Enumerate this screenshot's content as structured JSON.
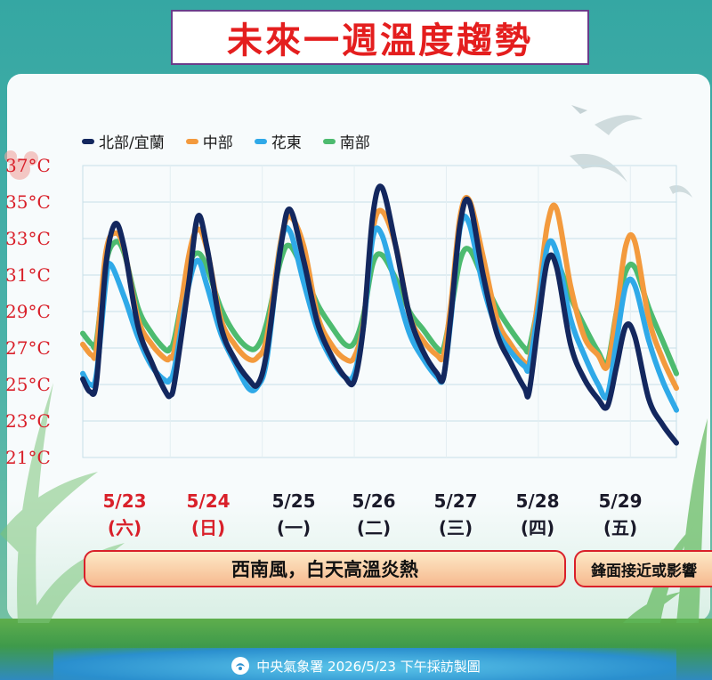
{
  "title": "未來一週溫度趨勢",
  "footer": {
    "text": "中央氣象署 2026/5/23 下午採訪製圖"
  },
  "dates": [
    {
      "date": "5/23",
      "weekday": "(六)",
      "color": "#d9202a"
    },
    {
      "date": "5/24",
      "weekday": "(日)",
      "color": "#d9202a"
    },
    {
      "date": "5/25",
      "weekday": "(一)",
      "color": "#1a1a2a"
    },
    {
      "date": "5/26",
      "weekday": "(二)",
      "color": "#1a1a2a"
    },
    {
      "date": "5/27",
      "weekday": "(三)",
      "color": "#1a1a2a"
    },
    {
      "date": "5/28",
      "weekday": "(四)",
      "color": "#1a1a2a"
    },
    {
      "date": "5/29",
      "weekday": "(五)",
      "color": "#1a1a2a"
    }
  ],
  "banners": {
    "main": "西南風，白天高溫炎熱",
    "side": "鋒面接近或影響"
  },
  "chart_data": {
    "type": "line",
    "title": "未來一週溫度趨勢",
    "xlabel": "",
    "ylabel": "",
    "y_ticks": [
      "37°C",
      "35°C",
      "33°C",
      "31°C",
      "29°C",
      "27°C",
      "25°C",
      "23°C",
      "21°C"
    ],
    "ylim": [
      21,
      37
    ],
    "grid": true,
    "legend_position": "top-left",
    "x_note": "Hourly-ish points across 5/23–5/29; x values are fractional days from 5/23 00:00.",
    "series": [
      {
        "name": "北部/宜蘭",
        "color": "#13275e",
        "points": [
          [
            0.0,
            25.3
          ],
          [
            0.08,
            24.6
          ],
          [
            0.15,
            25.2
          ],
          [
            0.25,
            31.5
          ],
          [
            0.35,
            33.8
          ],
          [
            0.45,
            32.5
          ],
          [
            0.6,
            28.2
          ],
          [
            0.75,
            26.2
          ],
          [
            0.9,
            24.6
          ],
          [
            0.95,
            24.4
          ],
          [
            1.0,
            25.2
          ],
          [
            1.15,
            30.5
          ],
          [
            1.25,
            34.2
          ],
          [
            1.35,
            32.5
          ],
          [
            1.5,
            28.2
          ],
          [
            1.65,
            26.4
          ],
          [
            1.8,
            25.3
          ],
          [
            1.9,
            25.0
          ],
          [
            2.0,
            26.8
          ],
          [
            2.15,
            32.5
          ],
          [
            2.25,
            34.6
          ],
          [
            2.4,
            31.8
          ],
          [
            2.55,
            28.4
          ],
          [
            2.7,
            26.6
          ],
          [
            2.85,
            25.4
          ],
          [
            2.95,
            25.2
          ],
          [
            3.05,
            28.2
          ],
          [
            3.15,
            34.2
          ],
          [
            3.25,
            35.8
          ],
          [
            3.4,
            32.6
          ],
          [
            3.55,
            28.8
          ],
          [
            3.7,
            26.8
          ],
          [
            3.85,
            25.6
          ],
          [
            3.92,
            25.4
          ],
          [
            4.0,
            28.8
          ],
          [
            4.1,
            33.8
          ],
          [
            4.2,
            35.0
          ],
          [
            4.35,
            31.0
          ],
          [
            4.5,
            27.8
          ],
          [
            4.65,
            26.2
          ],
          [
            4.8,
            24.8
          ],
          [
            4.85,
            24.6
          ],
          [
            4.95,
            28.4
          ],
          [
            5.05,
            31.8
          ],
          [
            5.15,
            31.4
          ],
          [
            5.3,
            27.2
          ],
          [
            5.45,
            25.3
          ],
          [
            5.6,
            24.2
          ],
          [
            5.7,
            23.8
          ],
          [
            5.8,
            26.0
          ],
          [
            5.9,
            28.2
          ],
          [
            6.0,
            27.6
          ],
          [
            6.15,
            24.2
          ],
          [
            6.3,
            22.8
          ],
          [
            6.45,
            21.8
          ]
        ]
      },
      {
        "name": "中部",
        "color": "#f39a3d",
        "points": [
          [
            0.0,
            27.2
          ],
          [
            0.1,
            26.6
          ],
          [
            0.15,
            27.0
          ],
          [
            0.25,
            32.2
          ],
          [
            0.35,
            33.3
          ],
          [
            0.45,
            32.4
          ],
          [
            0.6,
            28.6
          ],
          [
            0.75,
            27.2
          ],
          [
            0.9,
            26.4
          ],
          [
            0.95,
            26.5
          ],
          [
            1.0,
            27.0
          ],
          [
            1.15,
            32.0
          ],
          [
            1.25,
            33.5
          ],
          [
            1.35,
            32.4
          ],
          [
            1.5,
            28.6
          ],
          [
            1.65,
            27.2
          ],
          [
            1.8,
            26.4
          ],
          [
            1.9,
            26.5
          ],
          [
            2.0,
            27.6
          ],
          [
            2.15,
            32.8
          ],
          [
            2.25,
            34.2
          ],
          [
            2.4,
            32.6
          ],
          [
            2.55,
            28.8
          ],
          [
            2.7,
            27.2
          ],
          [
            2.85,
            26.4
          ],
          [
            2.95,
            26.5
          ],
          [
            3.05,
            28.4
          ],
          [
            3.15,
            33.4
          ],
          [
            3.25,
            34.5
          ],
          [
            3.4,
            32.6
          ],
          [
            3.55,
            28.8
          ],
          [
            3.7,
            27.4
          ],
          [
            3.85,
            26.6
          ],
          [
            3.92,
            26.6
          ],
          [
            4.0,
            29.4
          ],
          [
            4.1,
            34.2
          ],
          [
            4.2,
            35.1
          ],
          [
            4.35,
            32.0
          ],
          [
            4.5,
            28.6
          ],
          [
            4.65,
            27.2
          ],
          [
            4.8,
            26.2
          ],
          [
            4.85,
            26.2
          ],
          [
            4.95,
            29.8
          ],
          [
            5.05,
            33.8
          ],
          [
            5.15,
            34.6
          ],
          [
            5.3,
            30.4
          ],
          [
            5.45,
            27.6
          ],
          [
            5.6,
            26.6
          ],
          [
            5.7,
            26.0
          ],
          [
            5.8,
            29.0
          ],
          [
            5.9,
            32.6
          ],
          [
            6.0,
            32.8
          ],
          [
            6.15,
            28.6
          ],
          [
            6.3,
            26.4
          ],
          [
            6.45,
            24.8
          ]
        ]
      },
      {
        "name": "花東",
        "color": "#2fa9e8",
        "points": [
          [
            0.0,
            25.6
          ],
          [
            0.08,
            25.0
          ],
          [
            0.15,
            25.6
          ],
          [
            0.25,
            30.6
          ],
          [
            0.3,
            31.6
          ],
          [
            0.45,
            29.8
          ],
          [
            0.6,
            27.6
          ],
          [
            0.75,
            26.0
          ],
          [
            0.9,
            25.2
          ],
          [
            0.95,
            25.3
          ],
          [
            1.0,
            26.0
          ],
          [
            1.15,
            30.4
          ],
          [
            1.25,
            31.8
          ],
          [
            1.35,
            30.4
          ],
          [
            1.5,
            27.8
          ],
          [
            1.65,
            26.2
          ],
          [
            1.8,
            24.8
          ],
          [
            1.9,
            24.9
          ],
          [
            2.0,
            26.4
          ],
          [
            2.15,
            32.6
          ],
          [
            2.25,
            33.4
          ],
          [
            2.4,
            30.6
          ],
          [
            2.55,
            28.0
          ],
          [
            2.7,
            26.4
          ],
          [
            2.85,
            25.4
          ],
          [
            2.95,
            25.6
          ],
          [
            3.05,
            28.2
          ],
          [
            3.15,
            33.0
          ],
          [
            3.25,
            33.2
          ],
          [
            3.4,
            30.4
          ],
          [
            3.55,
            27.8
          ],
          [
            3.7,
            26.4
          ],
          [
            3.85,
            25.4
          ],
          [
            3.92,
            25.4
          ],
          [
            4.0,
            28.6
          ],
          [
            4.1,
            33.6
          ],
          [
            4.2,
            33.8
          ],
          [
            4.35,
            30.4
          ],
          [
            4.5,
            28.0
          ],
          [
            4.65,
            26.8
          ],
          [
            4.8,
            26.0
          ],
          [
            4.85,
            26.0
          ],
          [
            4.95,
            29.2
          ],
          [
            5.05,
            32.6
          ],
          [
            5.15,
            32.2
          ],
          [
            5.3,
            28.6
          ],
          [
            5.45,
            26.6
          ],
          [
            5.6,
            25.0
          ],
          [
            5.7,
            24.4
          ],
          [
            5.8,
            27.4
          ],
          [
            5.9,
            30.4
          ],
          [
            6.0,
            30.4
          ],
          [
            6.15,
            27.4
          ],
          [
            6.3,
            25.2
          ],
          [
            6.45,
            23.6
          ]
        ]
      },
      {
        "name": "南部",
        "color": "#4dbb6f",
        "points": [
          [
            0.0,
            27.8
          ],
          [
            0.1,
            27.2
          ],
          [
            0.15,
            27.4
          ],
          [
            0.25,
            31.6
          ],
          [
            0.35,
            32.8
          ],
          [
            0.45,
            32.2
          ],
          [
            0.6,
            29.2
          ],
          [
            0.75,
            27.8
          ],
          [
            0.9,
            26.9
          ],
          [
            0.95,
            27.0
          ],
          [
            1.0,
            27.6
          ],
          [
            1.15,
            31.4
          ],
          [
            1.25,
            32.2
          ],
          [
            1.35,
            31.4
          ],
          [
            1.5,
            29.2
          ],
          [
            1.65,
            27.8
          ],
          [
            1.8,
            27.0
          ],
          [
            1.9,
            27.1
          ],
          [
            2.0,
            28.4
          ],
          [
            2.15,
            31.8
          ],
          [
            2.25,
            32.6
          ],
          [
            2.4,
            31.2
          ],
          [
            2.55,
            29.4
          ],
          [
            2.7,
            28.2
          ],
          [
            2.85,
            27.2
          ],
          [
            2.95,
            27.3
          ],
          [
            3.05,
            28.8
          ],
          [
            3.15,
            31.6
          ],
          [
            3.25,
            32.1
          ],
          [
            3.4,
            30.8
          ],
          [
            3.55,
            29.0
          ],
          [
            3.7,
            28.0
          ],
          [
            3.85,
            27.0
          ],
          [
            3.92,
            27.0
          ],
          [
            4.0,
            29.0
          ],
          [
            4.1,
            31.8
          ],
          [
            4.2,
            32.4
          ],
          [
            4.35,
            30.8
          ],
          [
            4.5,
            29.2
          ],
          [
            4.65,
            28.0
          ],
          [
            4.8,
            27.0
          ],
          [
            4.85,
            27.0
          ],
          [
            4.95,
            29.4
          ],
          [
            5.05,
            31.8
          ],
          [
            5.15,
            31.8
          ],
          [
            5.3,
            29.8
          ],
          [
            5.45,
            28.2
          ],
          [
            5.6,
            26.8
          ],
          [
            5.7,
            26.2
          ],
          [
            5.8,
            29.0
          ],
          [
            5.9,
            31.2
          ],
          [
            6.0,
            31.4
          ],
          [
            6.15,
            29.2
          ],
          [
            6.3,
            27.4
          ],
          [
            6.45,
            25.6
          ]
        ]
      }
    ]
  }
}
